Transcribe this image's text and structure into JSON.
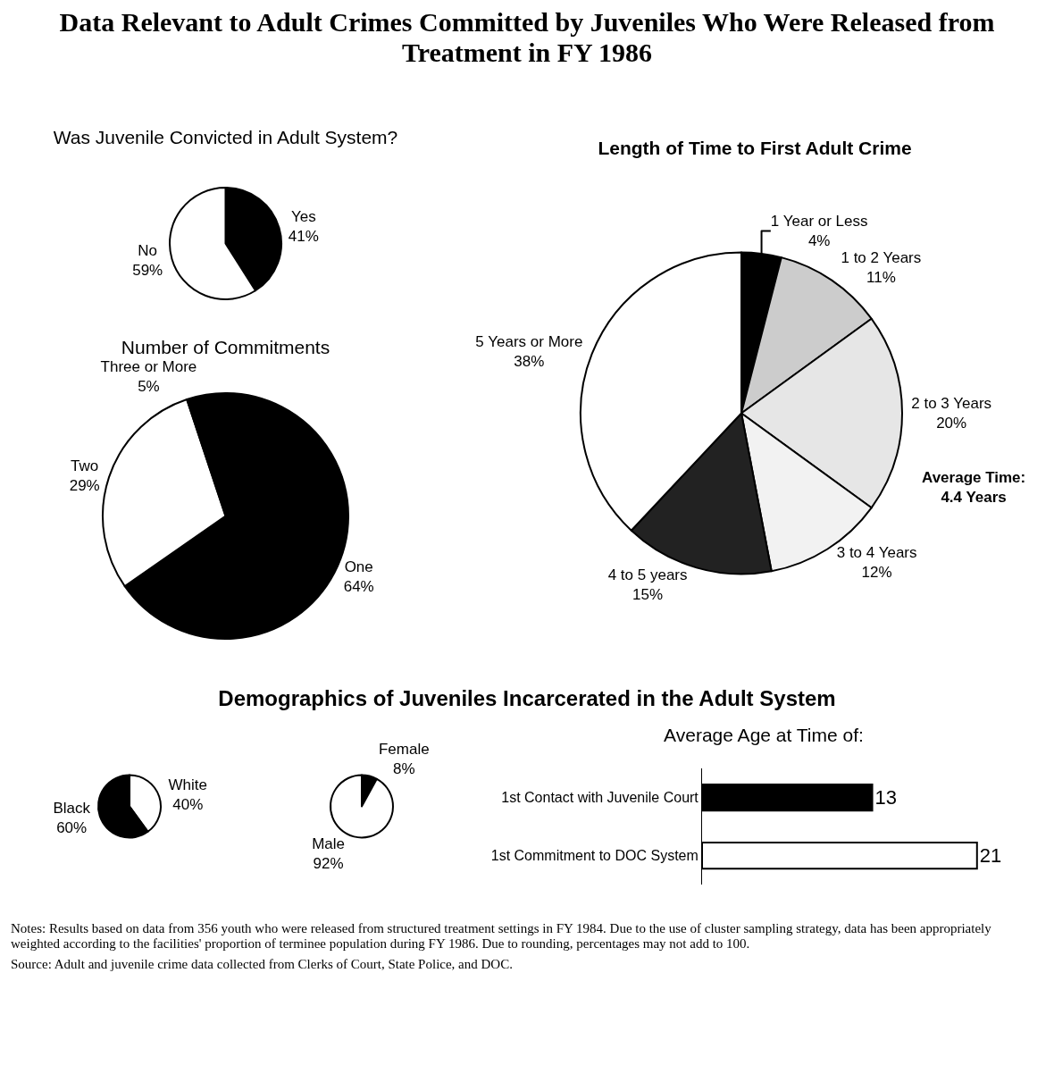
{
  "chart_data": [
    {
      "type": "other",
      "title": "Data Relevant to Adult Crimes Committed by Juveniles Who Were Released from Treatment in FY 1986"
    },
    {
      "type": "pie",
      "title": "Was Juvenile Convicted in Adult System?",
      "categories": [
        "Yes",
        "No"
      ],
      "values": [
        41,
        59
      ],
      "value_labels": [
        "41%",
        "59%"
      ],
      "colors": [
        "#000000",
        "#ffffff"
      ]
    },
    {
      "type": "pie",
      "title": "Number of Commitments",
      "categories": [
        "One",
        "Two",
        "Three or More"
      ],
      "values": [
        64,
        29,
        5
      ],
      "value_labels": [
        "64%",
        "29%",
        "5%"
      ],
      "colors": [
        "#000000",
        "#ffffff",
        "#000000"
      ]
    },
    {
      "type": "pie",
      "title": "Length of Time to First Adult Crime",
      "categories": [
        "1 Year or Less",
        "1 to 2 Years",
        "2 to 3 Years",
        "3 to 4 Years",
        "4 to 5 years",
        "5 Years or More"
      ],
      "values": [
        4,
        11,
        20,
        12,
        15,
        38
      ],
      "value_labels": [
        "4%",
        "11%",
        "20%",
        "12%",
        "15%",
        "38%"
      ],
      "colors": [
        "#000000",
        "#cccccc",
        "#e6e6e6",
        "#f2f2f2",
        "#222222",
        "#ffffff"
      ],
      "annotations": [
        "Average Time: 4.4 Years"
      ]
    },
    {
      "type": "other",
      "title": "Demographics of Juveniles Incarcerated in the Adult System"
    },
    {
      "type": "pie",
      "categories": [
        "White",
        "Black"
      ],
      "values": [
        40,
        60
      ],
      "value_labels": [
        "40%",
        "60%"
      ],
      "colors": [
        "#ffffff",
        "#000000"
      ]
    },
    {
      "type": "pie",
      "categories": [
        "Female",
        "Male"
      ],
      "values": [
        8,
        92
      ],
      "value_labels": [
        "8%",
        "92%"
      ],
      "colors": [
        "#000000",
        "#ffffff"
      ]
    },
    {
      "type": "bar",
      "title": "Average Age at Time of:",
      "orientation": "horizontal",
      "categories": [
        "1st Contact with Juvenile Court",
        "1st Commitment to DOC System"
      ],
      "values": [
        13,
        21
      ],
      "colors": [
        "#000000",
        "#ffffff"
      ],
      "data_labels": true
    },
    {
      "type": "other",
      "annotations": [
        "Notes: Results based on data from 356 youth who were released from structured treatment settings in FY 1984. Due to the use of cluster sampling strategy, data has been appropriately weighted according to the facilities' proportion of terminee population during FY 1986. Due to rounding, percentages may not add to 100.",
        "Source: Adult and juvenile crime data collected from Clerks of Court, State Police, and DOC."
      ]
    }
  ]
}
